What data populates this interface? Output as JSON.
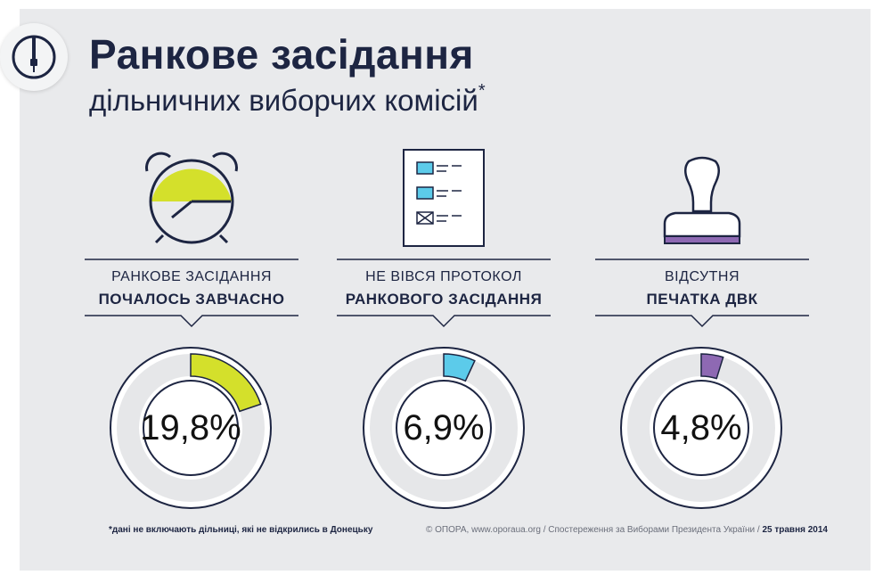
{
  "title": "Ранкове засідання",
  "subtitle": "дільничних виборчих комісій",
  "subtitle_asterisk": "*",
  "colors": {
    "navy": "#1d2542",
    "lime": "#d4e02b",
    "blue": "#5ccbea",
    "purple": "#8e69b3",
    "ring": "#e6e7e9"
  },
  "logo_icon": "opora-logo-icon",
  "stats": [
    {
      "icon": "alarm-clock-icon",
      "line1": "РАНКОВЕ ЗАСІДАННЯ",
      "line2": "ПОЧАЛОСЬ ЗАВЧАСНО",
      "percent_label": "19,8%",
      "value": 19.8,
      "color": "#d4e02b"
    },
    {
      "icon": "protocol-document-icon",
      "line1": "НЕ ВІВСЯ ПРОТОКОЛ",
      "line2": "РАНКОВОГО ЗАСІДАННЯ",
      "percent_label": "6,9%",
      "value": 6.9,
      "color": "#5ccbea"
    },
    {
      "icon": "stamp-icon",
      "line1": "ВІДСУТНЯ",
      "line2": "ПЕЧАТКА ДВК",
      "percent_label": "4,8%",
      "value": 4.8,
      "color": "#8e69b3"
    }
  ],
  "footnote": "*дані не включають дільниці, які не відкрились в Донецьку",
  "credits": "© ОПОРА, www.oporaua.org / Спостереження за Виборами Президента України / ",
  "credits_date": "25 травня 2014"
}
